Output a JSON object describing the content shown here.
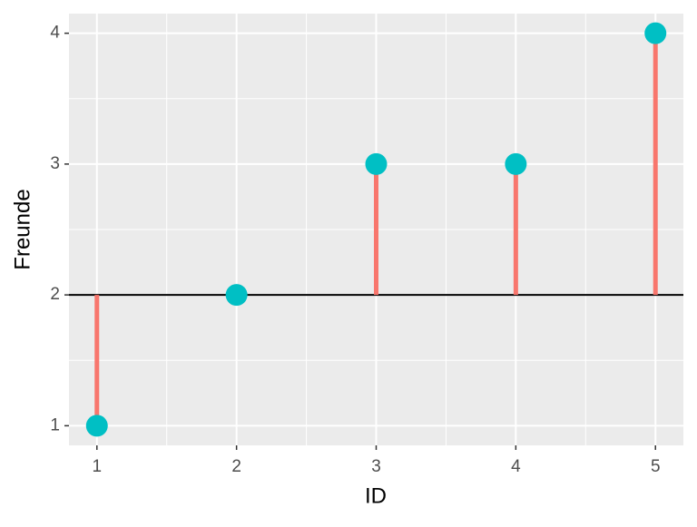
{
  "chart_data": {
    "type": "lollipop",
    "x_label": "ID",
    "y_label": "Freunde",
    "x": [
      1,
      2,
      3,
      4,
      5
    ],
    "series": [
      {
        "color": "#00BFC4",
        "values": [
          1,
          2,
          3,
          3,
          4
        ]
      }
    ],
    "segment_color": "#F8766D",
    "hline": 2,
    "xlim": [
      0.8,
      5.2
    ],
    "ylim": [
      0.85,
      4.15
    ],
    "xticks": [
      1,
      2,
      3,
      4,
      5
    ],
    "yticks": [
      1,
      2,
      3,
      4
    ],
    "xminorticks": [
      1.5,
      2.5,
      3.5,
      4.5
    ],
    "yminorticks": [
      1.5,
      2.5,
      3.5
    ],
    "grid": true
  }
}
